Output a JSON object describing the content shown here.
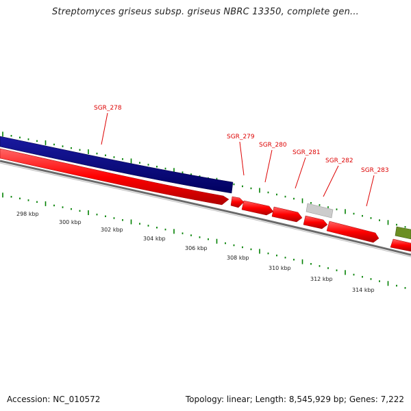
{
  "title": "Streptomyces griseus subsp. griseus NBRC 13350, complete gen...",
  "footer": {
    "accession": "Accession: NC_010572",
    "summary": "Topology: linear; Length: 8,545,929 bp; Genes: 7,222"
  },
  "colors": {
    "gene_forward": "#ff0000",
    "gene_selected": "#000080",
    "gene_light": "#c8c8c8",
    "gene_green": "#6b8e23",
    "label": "#dd0000",
    "tick": "#008000",
    "backbone": "#808080"
  },
  "scale": {
    "ticks": [
      "298 kbp",
      "300 kbp",
      "302 kbp",
      "304 kbp",
      "306 kbp",
      "308 kbp",
      "310 kbp",
      "312 kbp",
      "314 kbp"
    ]
  },
  "genes": [
    {
      "id": "SGR_278",
      "label": "SGR_278",
      "type": "selected",
      "icon": "block-bar"
    },
    {
      "id": "SGR_279",
      "label": "SGR_279",
      "type": "forward",
      "icon": "arrow-right"
    },
    {
      "id": "SGR_280",
      "label": "SGR_280",
      "type": "forward",
      "icon": "arrow-right"
    },
    {
      "id": "SGR_281",
      "label": "SGR_281",
      "type": "forward",
      "icon": "arrow-right"
    },
    {
      "id": "SGR_282",
      "label": "SGR_282",
      "type": "forward",
      "icon": "arrow-right"
    },
    {
      "id": "SGR_283",
      "label": "SGR_283",
      "type": "forward",
      "icon": "arrow-right"
    }
  ]
}
